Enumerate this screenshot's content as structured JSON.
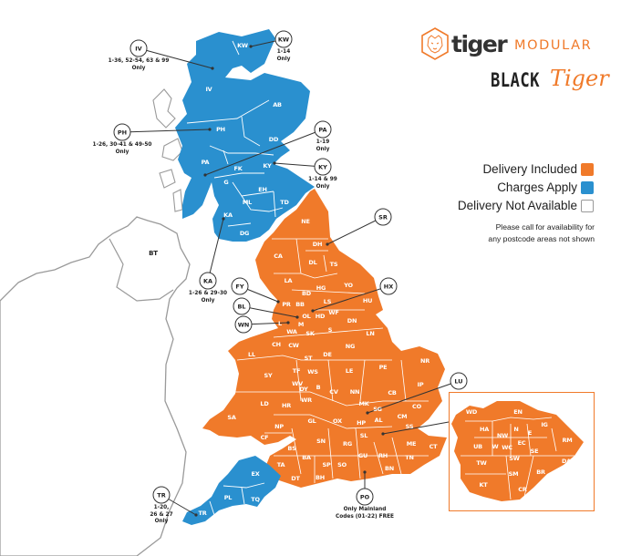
{
  "colors": {
    "delivery_included": "#f07a2a",
    "charges_apply": "#2a90cf",
    "not_available": "#ffffff",
    "outline": "#9a9a9a"
  },
  "logo": {
    "brand": "tiger",
    "brand_suffix": "MODULAR",
    "sub_brand": "BLACK",
    "sub_brand_script": "Tiger",
    "icon": "tiger-head-hexagon-icon"
  },
  "legend": {
    "items": [
      {
        "label": "Delivery Included",
        "status": "included"
      },
      {
        "label": "Charges Apply",
        "status": "charges"
      },
      {
        "label": "Delivery Not Available",
        "status": "unavailable"
      }
    ],
    "note_line1": "Please call for availability for",
    "note_line2": "any postcode areas not shown"
  },
  "map": {
    "postcode_areas": [
      {
        "code": "KW",
        "status": "charges"
      },
      {
        "code": "IV",
        "status": "charges"
      },
      {
        "code": "AB",
        "status": "charges"
      },
      {
        "code": "PH",
        "status": "charges"
      },
      {
        "code": "DD",
        "status": "charges"
      },
      {
        "code": "PA",
        "status": "charges"
      },
      {
        "code": "FK",
        "status": "charges"
      },
      {
        "code": "KY",
        "status": "charges"
      },
      {
        "code": "G",
        "status": "charges"
      },
      {
        "code": "EH",
        "status": "charges"
      },
      {
        "code": "ML",
        "status": "charges"
      },
      {
        "code": "TD",
        "status": "charges"
      },
      {
        "code": "KA",
        "status": "charges"
      },
      {
        "code": "DG",
        "status": "charges"
      },
      {
        "code": "NE",
        "status": "included"
      },
      {
        "code": "DH",
        "status": "included"
      },
      {
        "code": "CA",
        "status": "included"
      },
      {
        "code": "DL",
        "status": "included"
      },
      {
        "code": "TS",
        "status": "included"
      },
      {
        "code": "LA",
        "status": "included"
      },
      {
        "code": "YO",
        "status": "included"
      },
      {
        "code": "HG",
        "status": "included"
      },
      {
        "code": "BD",
        "status": "included"
      },
      {
        "code": "PR",
        "status": "included"
      },
      {
        "code": "BB",
        "status": "included"
      },
      {
        "code": "LS",
        "status": "included"
      },
      {
        "code": "HU",
        "status": "included"
      },
      {
        "code": "OL",
        "status": "included"
      },
      {
        "code": "HD",
        "status": "included"
      },
      {
        "code": "WF",
        "status": "included"
      },
      {
        "code": "L",
        "status": "included"
      },
      {
        "code": "M",
        "status": "included"
      },
      {
        "code": "WA",
        "status": "included"
      },
      {
        "code": "SK",
        "status": "included"
      },
      {
        "code": "S",
        "status": "included"
      },
      {
        "code": "DN",
        "status": "included"
      },
      {
        "code": "LN",
        "status": "included"
      },
      {
        "code": "CH",
        "status": "included"
      },
      {
        "code": "CW",
        "status": "included"
      },
      {
        "code": "NG",
        "status": "included"
      },
      {
        "code": "ST",
        "status": "included"
      },
      {
        "code": "DE",
        "status": "included"
      },
      {
        "code": "LL",
        "status": "included"
      },
      {
        "code": "LE",
        "status": "included"
      },
      {
        "code": "PE",
        "status": "included"
      },
      {
        "code": "NR",
        "status": "included"
      },
      {
        "code": "SY",
        "status": "included"
      },
      {
        "code": "TF",
        "status": "included"
      },
      {
        "code": "WS",
        "status": "included"
      },
      {
        "code": "WV",
        "status": "included"
      },
      {
        "code": "DY",
        "status": "included"
      },
      {
        "code": "B",
        "status": "included"
      },
      {
        "code": "CV",
        "status": "included"
      },
      {
        "code": "NN",
        "status": "included"
      },
      {
        "code": "CB",
        "status": "included"
      },
      {
        "code": "IP",
        "status": "included"
      },
      {
        "code": "LD",
        "status": "included"
      },
      {
        "code": "HR",
        "status": "included"
      },
      {
        "code": "WR",
        "status": "included"
      },
      {
        "code": "MK",
        "status": "included"
      },
      {
        "code": "SG",
        "status": "included"
      },
      {
        "code": "AL",
        "status": "included"
      },
      {
        "code": "CO",
        "status": "included"
      },
      {
        "code": "CM",
        "status": "included"
      },
      {
        "code": "SA",
        "status": "included"
      },
      {
        "code": "HP",
        "status": "included"
      },
      {
        "code": "SS",
        "status": "included"
      },
      {
        "code": "GL",
        "status": "included"
      },
      {
        "code": "NP",
        "status": "included"
      },
      {
        "code": "OX",
        "status": "included"
      },
      {
        "code": "CF",
        "status": "included"
      },
      {
        "code": "SL",
        "status": "included"
      },
      {
        "code": "SN",
        "status": "included"
      },
      {
        "code": "RG",
        "status": "included"
      },
      {
        "code": "ME",
        "status": "included"
      },
      {
        "code": "CT",
        "status": "included"
      },
      {
        "code": "BS",
        "status": "included"
      },
      {
        "code": "BA",
        "status": "included"
      },
      {
        "code": "TA",
        "status": "included"
      },
      {
        "code": "SP",
        "status": "included"
      },
      {
        "code": "SO",
        "status": "included"
      },
      {
        "code": "GU",
        "status": "included"
      },
      {
        "code": "RH",
        "status": "included"
      },
      {
        "code": "TN",
        "status": "included"
      },
      {
        "code": "DT",
        "status": "included"
      },
      {
        "code": "BH",
        "status": "included"
      },
      {
        "code": "BN",
        "status": "included"
      },
      {
        "code": "EX",
        "status": "charges"
      },
      {
        "code": "PL",
        "status": "charges"
      },
      {
        "code": "TQ",
        "status": "charges"
      },
      {
        "code": "TR",
        "status": "charges"
      },
      {
        "code": "BT",
        "status": "unavailable"
      }
    ],
    "callouts": [
      {
        "code": "KW",
        "note": "1-14\nOnly"
      },
      {
        "code": "IV",
        "note": "1-36, 52-54, 63 & 99\nOnly"
      },
      {
        "code": "PH",
        "note": "1-26, 30-41 & 49-50\nOnly"
      },
      {
        "code": "PA",
        "note": "1-19\nOnly"
      },
      {
        "code": "KY",
        "note": "1-14 & 99\nOnly"
      },
      {
        "code": "KA",
        "note": "1-26 & 29-30\nOnly"
      },
      {
        "code": "SR",
        "note": ""
      },
      {
        "code": "FY",
        "note": ""
      },
      {
        "code": "BL",
        "note": ""
      },
      {
        "code": "WN",
        "note": ""
      },
      {
        "code": "HX",
        "note": ""
      },
      {
        "code": "LU",
        "note": ""
      },
      {
        "code": "TR",
        "note": "1-20,\n26 & 27\nOnly"
      },
      {
        "code": "PO",
        "note": "Only Mainland\nCodes (01-22) FREE"
      }
    ],
    "london_inset": [
      {
        "code": "WD"
      },
      {
        "code": "EN"
      },
      {
        "code": "HA"
      },
      {
        "code": "N"
      },
      {
        "code": "IG"
      },
      {
        "code": "NW"
      },
      {
        "code": "E"
      },
      {
        "code": "RM"
      },
      {
        "code": "UB"
      },
      {
        "code": "W"
      },
      {
        "code": "WC"
      },
      {
        "code": "EC"
      },
      {
        "code": "SE"
      },
      {
        "code": "TW"
      },
      {
        "code": "SW"
      },
      {
        "code": "DA"
      },
      {
        "code": "SM"
      },
      {
        "code": "BR"
      },
      {
        "code": "KT"
      },
      {
        "code": "CR"
      }
    ]
  }
}
